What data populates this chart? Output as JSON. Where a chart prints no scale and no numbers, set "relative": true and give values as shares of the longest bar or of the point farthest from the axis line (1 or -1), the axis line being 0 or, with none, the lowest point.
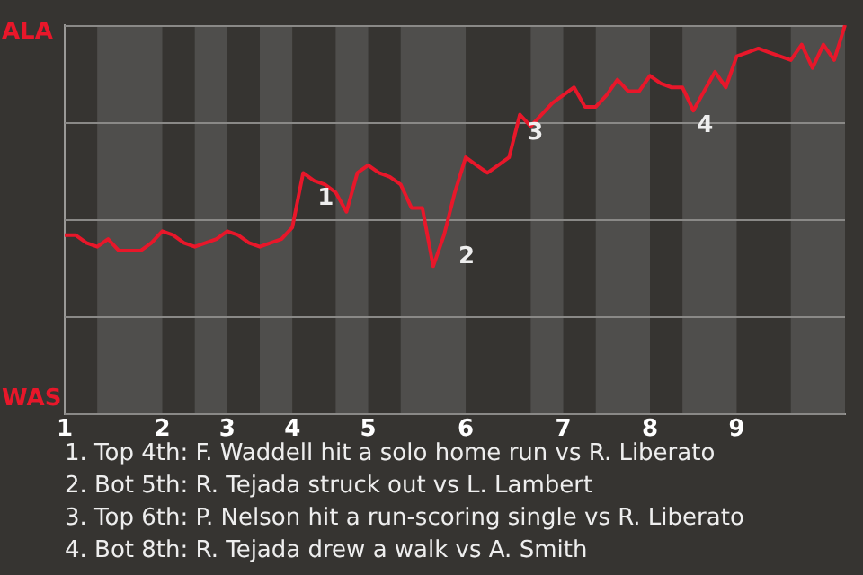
{
  "chart_data": {
    "type": "line",
    "relative": true,
    "categories": [
      "1",
      null,
      null,
      null,
      null,
      null,
      null,
      null,
      null,
      "2",
      null,
      null,
      null,
      null,
      null,
      "3",
      null,
      null,
      null,
      null,
      null,
      "4",
      null,
      null,
      null,
      null,
      null,
      null,
      "5",
      null,
      null,
      null,
      null,
      null,
      null,
      null,
      null,
      "6",
      null,
      null,
      null,
      null,
      null,
      null,
      null,
      null,
      "7",
      null,
      null,
      null,
      null,
      null,
      null,
      null,
      "8",
      null,
      null,
      null,
      null,
      null,
      null,
      null,
      "9",
      null,
      null,
      null,
      null,
      null,
      null,
      null,
      null,
      null,
      null
    ],
    "series": [
      {
        "color": "#e8172a",
        "values": [
          0.46,
          0.46,
          0.44,
          0.43,
          0.45,
          0.42,
          0.42,
          0.42,
          0.44,
          0.47,
          0.46,
          0.44,
          0.43,
          0.44,
          0.45,
          0.47,
          0.46,
          0.44,
          0.43,
          0.44,
          0.45,
          0.48,
          0.62,
          0.6,
          0.59,
          0.57,
          0.52,
          0.62,
          0.64,
          0.62,
          0.61,
          0.59,
          0.53,
          0.53,
          0.38,
          0.46,
          0.57,
          0.66,
          0.64,
          0.62,
          0.64,
          0.66,
          0.77,
          0.74,
          0.77,
          0.8,
          0.82,
          0.84,
          0.79,
          0.79,
          0.82,
          0.86,
          0.83,
          0.83,
          0.87,
          0.85,
          0.84,
          0.84,
          0.78,
          0.83,
          0.88,
          0.84,
          0.92,
          0.93,
          0.94,
          0.93,
          0.92,
          0.91,
          0.95,
          0.89,
          0.95,
          0.91,
          1
        ]
      }
    ],
    "grid": "y",
    "marker": "none",
    "line_style": "solid",
    "annotations": [
      "ALA",
      "WAS",
      "1",
      "2",
      "3",
      "4",
      "1. Top 4th: F. Waddell hit a solo home run vs R. Liberato",
      "2. Bot 5th: R. Tejada struck out vs L. Lambert",
      "3. Top 6th: P. Nelson hit a run-scoring single vs R. Liberato",
      "4. Bot 8th: R. Tejada drew a walk vs A. Smith"
    ]
  }
}
